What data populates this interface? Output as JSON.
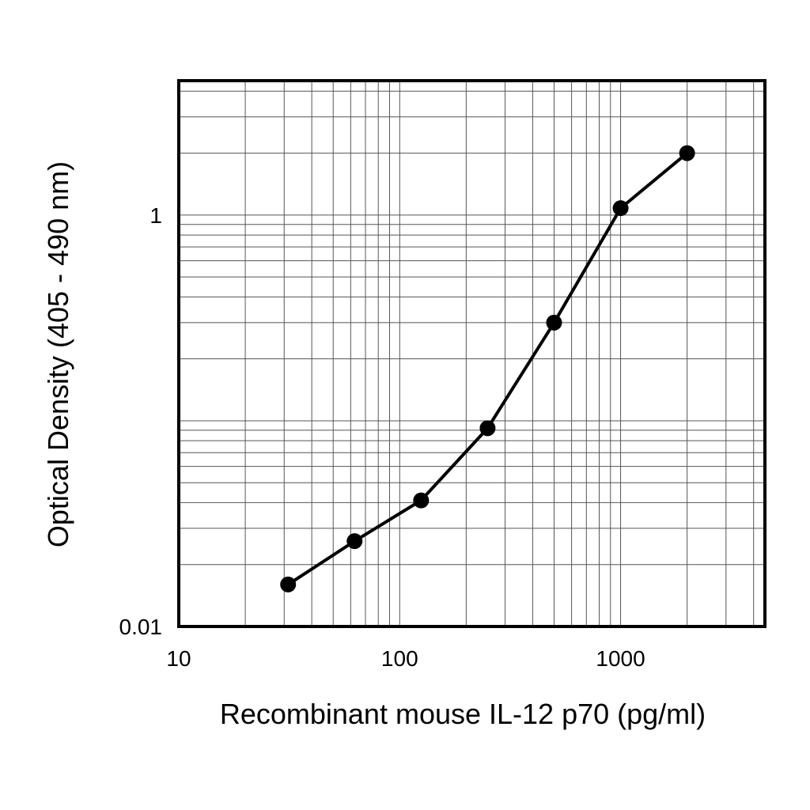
{
  "chart_data": {
    "type": "line",
    "xlabel": "Recombinant mouse IL-12 p70 (pg/ml)",
    "ylabel": "Optical Density (405 - 490 nm)",
    "x_scale": "log",
    "y_scale": "log",
    "xlim": [
      10,
      4500
    ],
    "ylim": [
      0.01,
      4.5
    ],
    "x_ticks": [
      {
        "value": 10,
        "label": "10"
      },
      {
        "value": 100,
        "label": "100"
      },
      {
        "value": 1000,
        "label": "1000"
      }
    ],
    "y_ticks": [
      {
        "value": 0.01,
        "label": "0.01"
      },
      {
        "value": 1,
        "label": "1"
      }
    ],
    "grid": true,
    "series": [
      {
        "x": [
          31.25,
          62.5,
          125,
          250,
          500,
          1000,
          2000
        ],
        "y": [
          0.016,
          0.026,
          0.041,
          0.092,
          0.3,
          1.08,
          2.0
        ]
      }
    ],
    "colors": {
      "line": "#000000",
      "grid": "#555555",
      "frame": "#000000"
    }
  }
}
